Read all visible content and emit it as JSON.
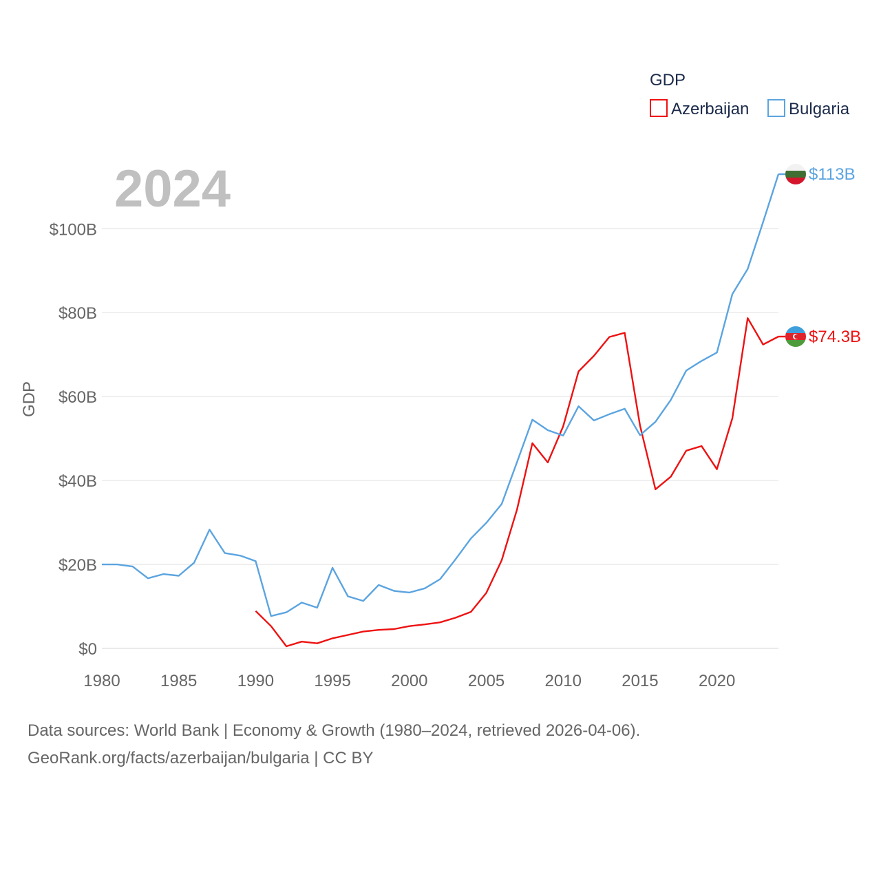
{
  "chart_data": {
    "type": "line",
    "title": "GDP",
    "year_label": "2024",
    "ylabel": "GDP",
    "xlabel": "",
    "xlim": [
      1980,
      2024
    ],
    "ylim": [
      0,
      113.5
    ],
    "x_ticks": [
      1980,
      1985,
      1990,
      1995,
      2000,
      2005,
      2010,
      2015,
      2020
    ],
    "y_ticks": [
      0,
      20,
      40,
      60,
      80,
      100
    ],
    "y_tick_labels": [
      "$0",
      "$20B",
      "$40B",
      "$60B",
      "$80B",
      "$100B"
    ],
    "grid": true,
    "legend_position": "top-right",
    "series": [
      {
        "name": "Azerbaijan",
        "color": "#ee1111",
        "end_label": "$74.3B",
        "x": [
          1990,
          1991,
          1992,
          1993,
          1994,
          1995,
          1996,
          1997,
          1998,
          1999,
          2000,
          2001,
          2002,
          2003,
          2004,
          2005,
          2006,
          2007,
          2008,
          2009,
          2010,
          2011,
          2012,
          2013,
          2014,
          2015,
          2016,
          2017,
          2018,
          2019,
          2020,
          2021,
          2022,
          2023,
          2024
        ],
        "values": [
          8.9,
          5.3,
          0.5,
          1.6,
          1.2,
          2.4,
          3.2,
          4,
          4.4,
          4.6,
          5.3,
          5.7,
          6.2,
          7.3,
          8.7,
          13.2,
          21,
          33.1,
          48.9,
          44.3,
          52.9,
          66,
          69.7,
          74.2,
          75.2,
          53.1,
          37.9,
          40.9,
          47.1,
          48.2,
          42.7,
          54.8,
          78.7,
          72.4,
          74.3
        ]
      },
      {
        "name": "Bulgaria",
        "color": "#5ba4e0",
        "end_label": "$113B",
        "x": [
          1980,
          1981,
          1982,
          1983,
          1984,
          1985,
          1986,
          1987,
          1988,
          1989,
          1990,
          1991,
          1992,
          1993,
          1994,
          1995,
          1996,
          1997,
          1998,
          1999,
          2000,
          2001,
          2002,
          2003,
          2004,
          2005,
          2006,
          2007,
          2008,
          2009,
          2010,
          2011,
          2012,
          2013,
          2014,
          2015,
          2016,
          2017,
          2018,
          2019,
          2020,
          2021,
          2022,
          2023,
          2024
        ],
        "values": [
          20,
          20,
          19.5,
          16.7,
          17.7,
          17.3,
          20.4,
          28.3,
          22.7,
          22.1,
          20.8,
          7.7,
          8.6,
          10.9,
          9.7,
          19.2,
          12.4,
          11.3,
          15.1,
          13.7,
          13.3,
          14.3,
          16.5,
          21.2,
          26.2,
          29.9,
          34.4,
          44.4,
          54.5,
          52,
          50.7,
          57.7,
          54.3,
          55.8,
          57.1,
          50.8,
          54,
          59.2,
          66.2,
          68.5,
          70.5,
          84.4,
          90.4,
          101.6,
          113
        ]
      }
    ]
  },
  "footer": {
    "source_line": "Data sources: World Bank | Economy & Growth (1980–2024, retrieved 2026-04-06).",
    "attribution_line": "GeoRank.org/facts/azerbaijan/bulgaria | CC BY"
  }
}
